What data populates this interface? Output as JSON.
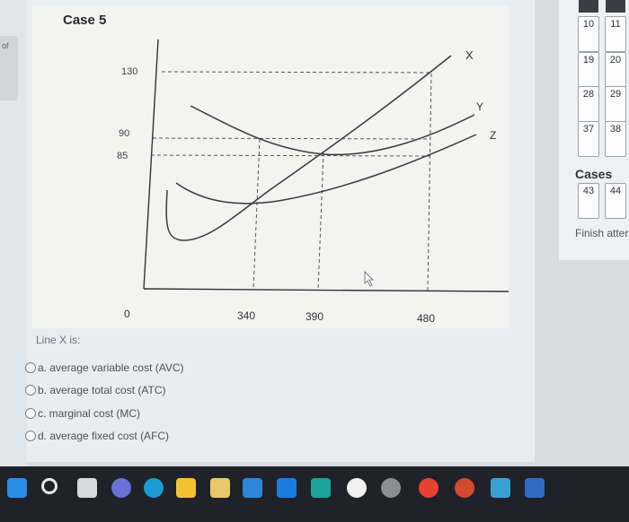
{
  "question": {
    "case_title": "Case 5",
    "prompt": "Line X is:",
    "options": [
      {
        "label": "a. average variable cost (AVC)"
      },
      {
        "label": "b. average total cost (ATC)"
      },
      {
        "label": "c. marginal cost (MC)"
      },
      {
        "label": "d. average fixed cost (AFC)"
      }
    ]
  },
  "chart_data": {
    "type": "line",
    "title": "Case 5",
    "xlabel": "",
    "ylabel": "",
    "x_ticks": [
      0,
      340,
      390,
      480
    ],
    "y_ticks": [
      85,
      90,
      130
    ],
    "curve_labels": [
      "X",
      "Y",
      "Z"
    ]
  },
  "left_panel": {
    "fragment": "of"
  },
  "navigation": {
    "row1": [
      "10",
      "11"
    ],
    "row2": [
      "19",
      "20"
    ],
    "row3": [
      "28",
      "29"
    ],
    "row4": [
      "37",
      "38"
    ],
    "cases_title": "Cases",
    "row5": [
      "43",
      "44"
    ],
    "finish_text": "Finish atter"
  },
  "taskbar": {
    "icons": [
      "windows-start-icon",
      "search-icon",
      "task-view-icon",
      "teams-icon",
      "edge-icon",
      "file-explorer-icon",
      "store-icon",
      "mail-icon",
      "dropbox-icon",
      "monitor-icon",
      "app-circle-icon",
      "settings-icon",
      "chrome-icon",
      "chrome-profile-icon",
      "photos-icon",
      "word-icon"
    ]
  }
}
